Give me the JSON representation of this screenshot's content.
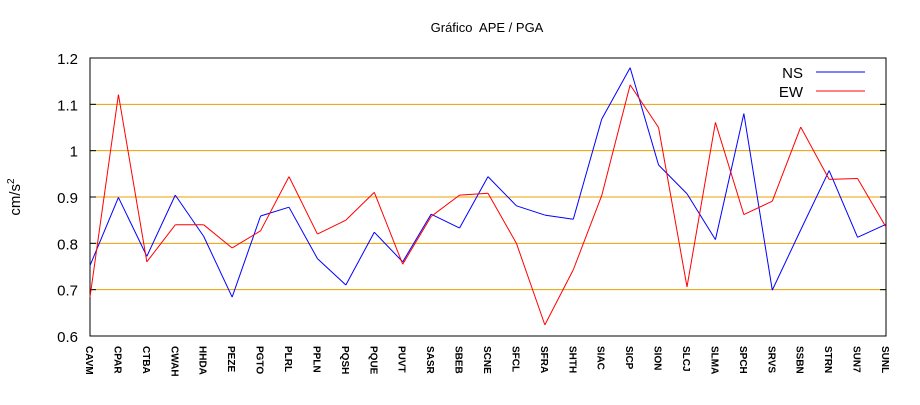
{
  "chart_data": {
    "type": "line",
    "title": "Gráfico  APE / PGA",
    "xlabel": "",
    "ylabel": "cm/s",
    "ylabel_superscript": "2",
    "ylim": [
      0.6,
      1.2
    ],
    "yticks": [
      "0.6",
      "0.7",
      "0.8",
      "0.9",
      "1",
      "1.1",
      "1.2"
    ],
    "grid": "horizontal gridlines at 0.7-1.1",
    "grid_color": "#e8a000",
    "legend_position": "top-right",
    "categories": [
      "CAVM",
      "CPAR",
      "CTBA",
      "CWAH",
      "HHDA",
      "PEZE",
      "PGTO",
      "PLRL",
      "PPLN",
      "PQSH",
      "PQUE",
      "PUVT",
      "SASR",
      "SBEB",
      "SCNE",
      "SFCL",
      "SFRA",
      "SHTH",
      "SIAC",
      "SICP",
      "SION",
      "SLCJ",
      "SLMA",
      "SPCH",
      "SRVS",
      "SSBN",
      "STRN",
      "SUN7",
      "SUNL"
    ],
    "series": [
      {
        "name": "NS",
        "color": "#0000ff",
        "values": [
          0.752,
          0.899,
          0.772,
          0.904,
          0.815,
          0.684,
          0.859,
          0.878,
          0.767,
          0.71,
          0.824,
          0.76,
          0.863,
          0.833,
          0.944,
          0.881,
          0.861,
          0.852,
          1.068,
          1.179,
          0.969,
          0.907,
          0.808,
          1.08,
          0.699,
          0.829,
          0.957,
          0.813,
          0.841
        ]
      },
      {
        "name": "EW",
        "color": "#ff0000",
        "values": [
          0.684,
          1.121,
          0.76,
          0.84,
          0.84,
          0.79,
          0.827,
          0.944,
          0.82,
          0.85,
          0.91,
          0.755,
          0.858,
          0.904,
          0.908,
          0.8,
          0.624,
          0.743,
          0.903,
          1.142,
          1.05,
          0.706,
          1.061,
          0.862,
          0.891,
          1.051,
          0.938,
          0.94,
          0.835
        ]
      }
    ]
  }
}
